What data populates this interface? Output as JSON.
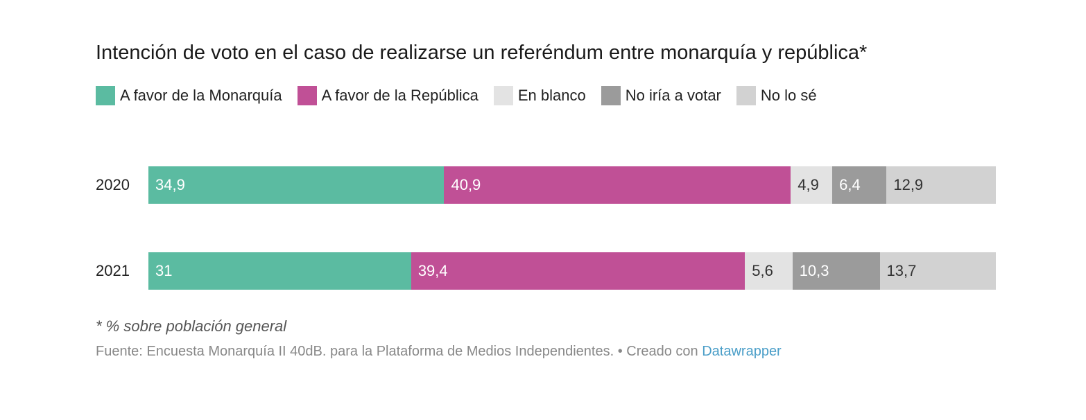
{
  "chart_data": {
    "type": "bar",
    "orientation": "horizontal",
    "stacked": true,
    "title": "Intención de voto en el caso de realizarse un referéndum entre monarquía y república*",
    "categories": [
      "2020",
      "2021"
    ],
    "series": [
      {
        "name": "A favor de la Monarquía",
        "color": "#5bbba1",
        "label_color": "#ffffff",
        "values": [
          34.9,
          31
        ],
        "labels": [
          "34,9",
          "31"
        ]
      },
      {
        "name": "A favor de la República",
        "color": "#c05096",
        "label_color": "#ffffff",
        "values": [
          40.9,
          39.4
        ],
        "labels": [
          "40,9",
          "39,4"
        ]
      },
      {
        "name": "En blanco",
        "color": "#e3e3e3",
        "label_color": "#333333",
        "values": [
          4.9,
          5.6
        ],
        "labels": [
          "4,9",
          "5,6"
        ]
      },
      {
        "name": "No iría a votar",
        "color": "#9b9b9b",
        "label_color": "#ffffff",
        "values": [
          6.4,
          10.3
        ],
        "labels": [
          "6,4",
          "10,3"
        ]
      },
      {
        "name": "No lo sé",
        "color": "#d2d2d2",
        "label_color": "#333333",
        "values": [
          12.9,
          13.7
        ],
        "labels": [
          "12,9",
          "13,7"
        ]
      }
    ],
    "note": "* % sobre población general",
    "source": "Fuente: Encuesta Monarquía II 40dB. para la Plataforma de Medios Independientes. • Creado con ",
    "credit_link": "Datawrapper"
  }
}
